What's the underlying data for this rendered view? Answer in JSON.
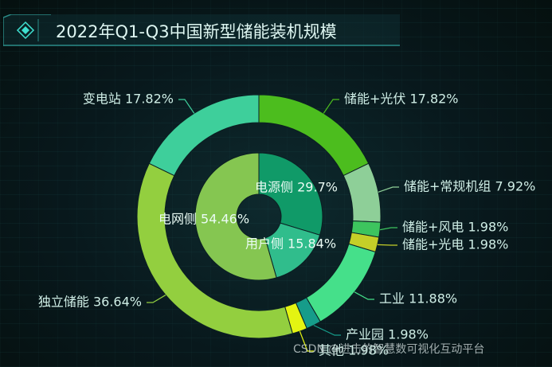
{
  "header": {
    "title": "2022年Q1-Q3中国新型储能装机规模"
  },
  "watermark": "CSDN @进击的智慧数可视化互动平台",
  "chart_data": {
    "type": "pie",
    "subtype": "nested-donut",
    "title": "2022年Q1-Q3中国新型储能装机规模",
    "inner": [
      {
        "name": "电源侧",
        "value": 29.7,
        "label": "电源侧 29.7%",
        "color": "#109a68"
      },
      {
        "name": "用户侧",
        "value": 15.84,
        "label": "用户侧 15.84%",
        "color": "#30bd8c"
      },
      {
        "name": "电网侧",
        "value": 54.46,
        "label": "电网侧 54.46%",
        "color": "#85c651"
      }
    ],
    "outer": [
      {
        "name": "储能+光伏",
        "value": 17.82,
        "label": "储能+光伏 17.82%",
        "color": "#4cbd1e"
      },
      {
        "name": "储能+常规机组",
        "value": 7.92,
        "label": "储能+常规机组 7.92%",
        "color": "#8ecf98"
      },
      {
        "name": "储能+风电",
        "value": 1.98,
        "label": "储能+风电 1.98%",
        "color": "#3dc45e"
      },
      {
        "name": "储能+光电",
        "value": 1.98,
        "label": "储能+光电 1.98%",
        "color": "#c5cf28"
      },
      {
        "name": "工业",
        "value": 11.88,
        "label": "工业 11.88%",
        "color": "#45e08a"
      },
      {
        "name": "产业园",
        "value": 1.98,
        "label": "产业园 1.98%",
        "color": "#169c8a"
      },
      {
        "name": "其他",
        "value": 1.98,
        "label": "其他 1.98%",
        "color": "#e4f412"
      },
      {
        "name": "独立储能",
        "value": 36.64,
        "label": "独立储能 36.64%",
        "color": "#93cf3f"
      },
      {
        "name": "变电站",
        "value": 17.82,
        "label": "变电站 17.82%",
        "color": "#3ecf9b"
      }
    ]
  }
}
